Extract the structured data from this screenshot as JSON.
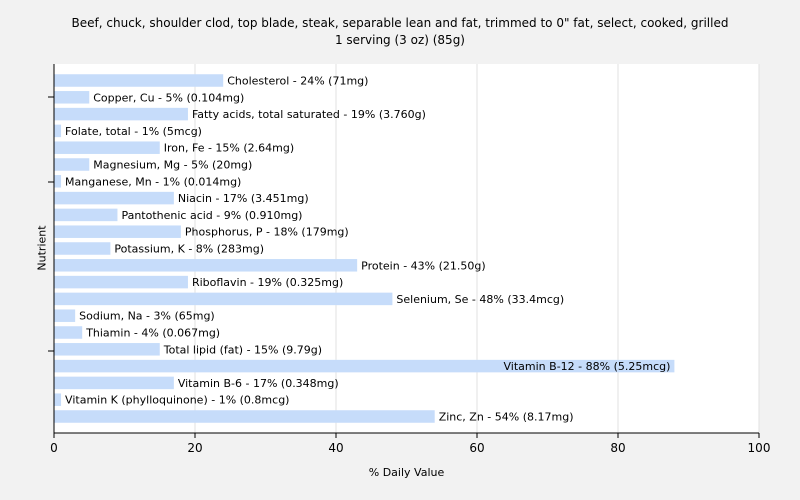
{
  "chart_data": {
    "type": "bar",
    "orientation": "horizontal",
    "title": "Beef, chuck, shoulder clod, top blade, steak, separable lean and fat, trimmed to 0\" fat, select, cooked, grilled",
    "subtitle": "1 serving (3 oz) (85g)",
    "xlabel": "% Daily Value",
    "ylabel": "Nutrient",
    "xlim": [
      0,
      100
    ],
    "xticks": [
      "0",
      "20",
      "40",
      "60",
      "80",
      "100"
    ],
    "grid": true,
    "bar_color": "#c6dcfa",
    "categories": [
      "Cholesterol",
      "Copper, Cu",
      "Fatty acids, total saturated",
      "Folate, total",
      "Iron, Fe",
      "Magnesium, Mg",
      "Manganese, Mn",
      "Niacin",
      "Pantothenic acid",
      "Phosphorus, P",
      "Potassium, K",
      "Protein",
      "Riboflavin",
      "Selenium, Se",
      "Sodium, Na",
      "Thiamin",
      "Total lipid (fat)",
      "Vitamin B-12",
      "Vitamin B-6",
      "Vitamin K (phylloquinone)",
      "Zinc, Zn"
    ],
    "values": [
      24,
      5,
      19,
      1,
      15,
      5,
      1,
      17,
      9,
      18,
      8,
      43,
      19,
      48,
      3,
      4,
      15,
      88,
      17,
      1,
      54
    ],
    "labels": [
      "Cholesterol - 24% (71mg)",
      "Copper, Cu - 5% (0.104mg)",
      "Fatty acids, total saturated - 19% (3.760g)",
      "Folate, total - 1% (5mcg)",
      "Iron, Fe - 15% (2.64mg)",
      "Magnesium, Mg - 5% (20mg)",
      "Manganese, Mn - 1% (0.014mg)",
      "Niacin - 17% (3.451mg)",
      "Pantothenic acid - 9% (0.910mg)",
      "Phosphorus, P - 18% (179mg)",
      "Potassium, K - 8% (283mg)",
      "Protein - 43% (21.50g)",
      "Riboflavin - 19% (0.325mg)",
      "Selenium, Se - 48% (33.4mcg)",
      "Sodium, Na - 3% (65mg)",
      "Thiamin - 4% (0.067mg)",
      "Total lipid (fat) - 15% (9.79g)",
      "Vitamin B-12 - 88% (5.25mcg)",
      "Vitamin B-6 - 17% (0.348mg)",
      "Vitamin K (phylloquinone) - 1% (0.8mcg)",
      "Zinc, Zn - 54% (8.17mg)"
    ]
  }
}
